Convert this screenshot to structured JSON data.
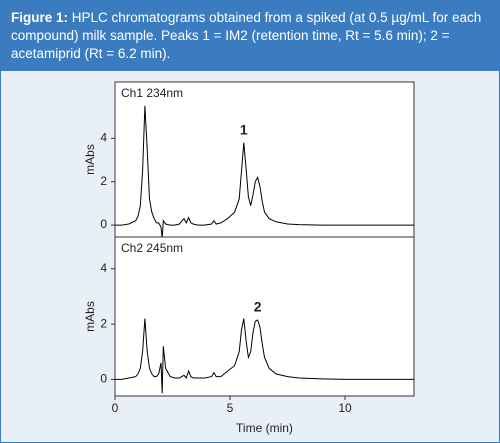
{
  "header": {
    "label": "Figure 1:",
    "text": "HPLC chromatograms obtained from a spiked (at 0.5 µg/mL for each compound) milk sample. Peaks 1 = IM2 (retention time, Rt = 5.6 min); 2 = acetamiprid (Rt = 6.2 min)."
  },
  "chart_data": [
    {
      "type": "line",
      "title": "Ch1 234nm",
      "ylabel": "mAbs",
      "color": "#000000",
      "annotations": [
        {
          "text": "1",
          "x": 5.6
        }
      ],
      "x": [
        0,
        0.3,
        0.6,
        0.9,
        1.0,
        1.1,
        1.2,
        1.3,
        1.4,
        1.5,
        1.6,
        1.7,
        1.8,
        1.9,
        2.0,
        2.05,
        2.1,
        2.2,
        2.4,
        2.6,
        2.8,
        3.0,
        3.1,
        3.2,
        3.3,
        3.4,
        3.6,
        3.9,
        4.2,
        4.3,
        4.4,
        4.6,
        4.9,
        5.2,
        5.4,
        5.5,
        5.6,
        5.7,
        5.8,
        5.9,
        6.0,
        6.1,
        6.2,
        6.3,
        6.4,
        6.5,
        6.7,
        7.0,
        7.5,
        8,
        9,
        10,
        11,
        12,
        13
      ],
      "values": [
        0,
        0,
        0.05,
        0.2,
        0.4,
        0.9,
        2.5,
        5.5,
        3.5,
        1.2,
        0.6,
        0.3,
        0.1,
        0.1,
        -0.1,
        -0.6,
        0.2,
        0.05,
        0,
        0,
        0.05,
        0.3,
        0.1,
        0.35,
        0.1,
        0.05,
        0,
        0,
        0.05,
        0.2,
        0.05,
        0.1,
        0.3,
        0.6,
        1.2,
        2.5,
        3.8,
        2.6,
        1.3,
        0.9,
        1.4,
        2.0,
        2.2,
        1.8,
        1.1,
        0.6,
        0.3,
        0.15,
        0.05,
        0.02,
        0,
        0,
        0,
        0,
        0
      ],
      "xlim": [
        0,
        13
      ],
      "ylim": [
        -0.55,
        6.6
      ],
      "yticks": [
        0,
        2,
        4
      ]
    },
    {
      "type": "line",
      "title": "Ch2 245nm",
      "ylabel": "mAbs",
      "xlabel": "Time (min)",
      "color": "#000000",
      "annotations": [
        {
          "text": "2",
          "x": 6.2
        }
      ],
      "x": [
        0,
        0.3,
        0.6,
        0.9,
        1.0,
        1.1,
        1.2,
        1.3,
        1.4,
        1.5,
        1.6,
        1.7,
        1.8,
        1.9,
        2.0,
        2.05,
        2.1,
        2.2,
        2.4,
        2.6,
        2.8,
        3.0,
        3.1,
        3.2,
        3.3,
        3.4,
        3.6,
        3.9,
        4.2,
        4.3,
        4.4,
        4.6,
        4.9,
        5.2,
        5.4,
        5.5,
        5.6,
        5.7,
        5.8,
        5.9,
        6.0,
        6.1,
        6.2,
        6.3,
        6.4,
        6.5,
        6.7,
        7.0,
        7.5,
        8,
        9,
        10,
        11,
        12,
        13
      ],
      "values": [
        0,
        0,
        0.05,
        0.1,
        0.2,
        0.4,
        1.0,
        2.2,
        1.0,
        0.4,
        0.2,
        0.1,
        0.1,
        0.2,
        0.6,
        -0.5,
        1.2,
        0.4,
        0.1,
        0.05,
        0.05,
        0.15,
        0.05,
        0.3,
        0.1,
        0.05,
        0.05,
        0.05,
        0.1,
        0.25,
        0.1,
        0.1,
        0.3,
        0.5,
        1.0,
        1.8,
        2.2,
        1.4,
        0.8,
        1.0,
        1.7,
        2.1,
        2.15,
        1.9,
        1.3,
        0.8,
        0.4,
        0.2,
        0.1,
        0.05,
        0.02,
        0,
        0,
        0,
        0
      ],
      "xlim": [
        0,
        13
      ],
      "ylim": [
        -0.6,
        5.15
      ],
      "yticks": [
        0,
        2,
        4
      ],
      "xticks": [
        0,
        5,
        10
      ]
    }
  ]
}
